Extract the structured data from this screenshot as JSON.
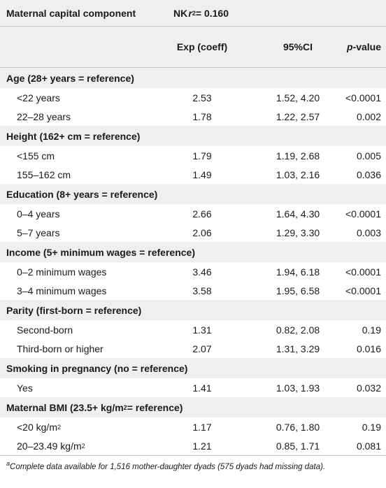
{
  "header": {
    "component_label": "Maternal capital component",
    "nk_prefix": "NK ",
    "nk_r": "r",
    "nk_exp": "2",
    "nk_value": " = 0.160"
  },
  "columns": {
    "exp_coeff": "Exp (coeff)",
    "ci": "95%CI",
    "p_italic": "p",
    "p_suffix": "-value"
  },
  "groups": [
    {
      "title_pre": "Age (28+ years = reference)",
      "title_sup": "",
      "title_post": "",
      "rows": [
        {
          "label_pre": "<22 years",
          "label_sup": "",
          "label_post": "",
          "coeff": "2.53",
          "ci": "1.52, 4.20",
          "p": "<0.0001"
        },
        {
          "label_pre": "22–28 years",
          "label_sup": "",
          "label_post": "",
          "coeff": "1.78",
          "ci": "1.22, 2.57",
          "p": "0.002"
        }
      ]
    },
    {
      "title_pre": "Height (162+ cm = reference)",
      "title_sup": "",
      "title_post": "",
      "rows": [
        {
          "label_pre": "<155 cm",
          "label_sup": "",
          "label_post": "",
          "coeff": "1.79",
          "ci": "1.19, 2.68",
          "p": "0.005"
        },
        {
          "label_pre": "155–162 cm",
          "label_sup": "",
          "label_post": "",
          "coeff": "1.49",
          "ci": "1.03, 2.16",
          "p": "0.036"
        }
      ]
    },
    {
      "title_pre": "Education (8+ years = reference)",
      "title_sup": "",
      "title_post": "",
      "rows": [
        {
          "label_pre": "0–4 years",
          "label_sup": "",
          "label_post": "",
          "coeff": "2.66",
          "ci": "1.64, 4.30",
          "p": "<0.0001"
        },
        {
          "label_pre": "5–7 years",
          "label_sup": "",
          "label_post": "",
          "coeff": "2.06",
          "ci": "1.29, 3.30",
          "p": "0.003"
        }
      ]
    },
    {
      "title_pre": "Income (5+ minimum wages = reference)",
      "title_sup": "",
      "title_post": "",
      "rows": [
        {
          "label_pre": "0–2 minimum wages",
          "label_sup": "",
          "label_post": "",
          "coeff": "3.46",
          "ci": "1.94, 6.18",
          "p": "<0.0001"
        },
        {
          "label_pre": "3–4 minimum wages",
          "label_sup": "",
          "label_post": "",
          "coeff": "3.58",
          "ci": "1.95, 6.58",
          "p": "<0.0001"
        }
      ]
    },
    {
      "title_pre": "Parity (first-born = reference)",
      "title_sup": "",
      "title_post": "",
      "rows": [
        {
          "label_pre": "Second-born",
          "label_sup": "",
          "label_post": "",
          "coeff": "1.31",
          "ci": "0.82, 2.08",
          "p": "0.19"
        },
        {
          "label_pre": "Third-born or higher",
          "label_sup": "",
          "label_post": "",
          "coeff": "2.07",
          "ci": "1.31, 3.29",
          "p": "0.016"
        }
      ]
    },
    {
      "title_pre": "Smoking in pregnancy (no = reference)",
      "title_sup": "",
      "title_post": "",
      "rows": [
        {
          "label_pre": "Yes",
          "label_sup": "",
          "label_post": "",
          "coeff": "1.41",
          "ci": "1.03, 1.93",
          "p": "0.032"
        }
      ]
    },
    {
      "title_pre": "Maternal BMI (23.5+ kg/m",
      "title_sup": "2",
      "title_post": " = reference)",
      "rows": [
        {
          "label_pre": "<20 kg/m",
          "label_sup": "2",
          "label_post": "",
          "coeff": "1.17",
          "ci": "0.76, 1.80",
          "p": "0.19"
        },
        {
          "label_pre": "20–23.49 kg/m",
          "label_sup": "2",
          "label_post": "",
          "coeff": "1.21",
          "ci": "0.85, 1.71",
          "p": "0.081"
        }
      ]
    }
  ],
  "footnote": {
    "marker": "a",
    "text": "Complete data available for 1,516 mother-daughter dyads (575 dyads had missing data)."
  }
}
